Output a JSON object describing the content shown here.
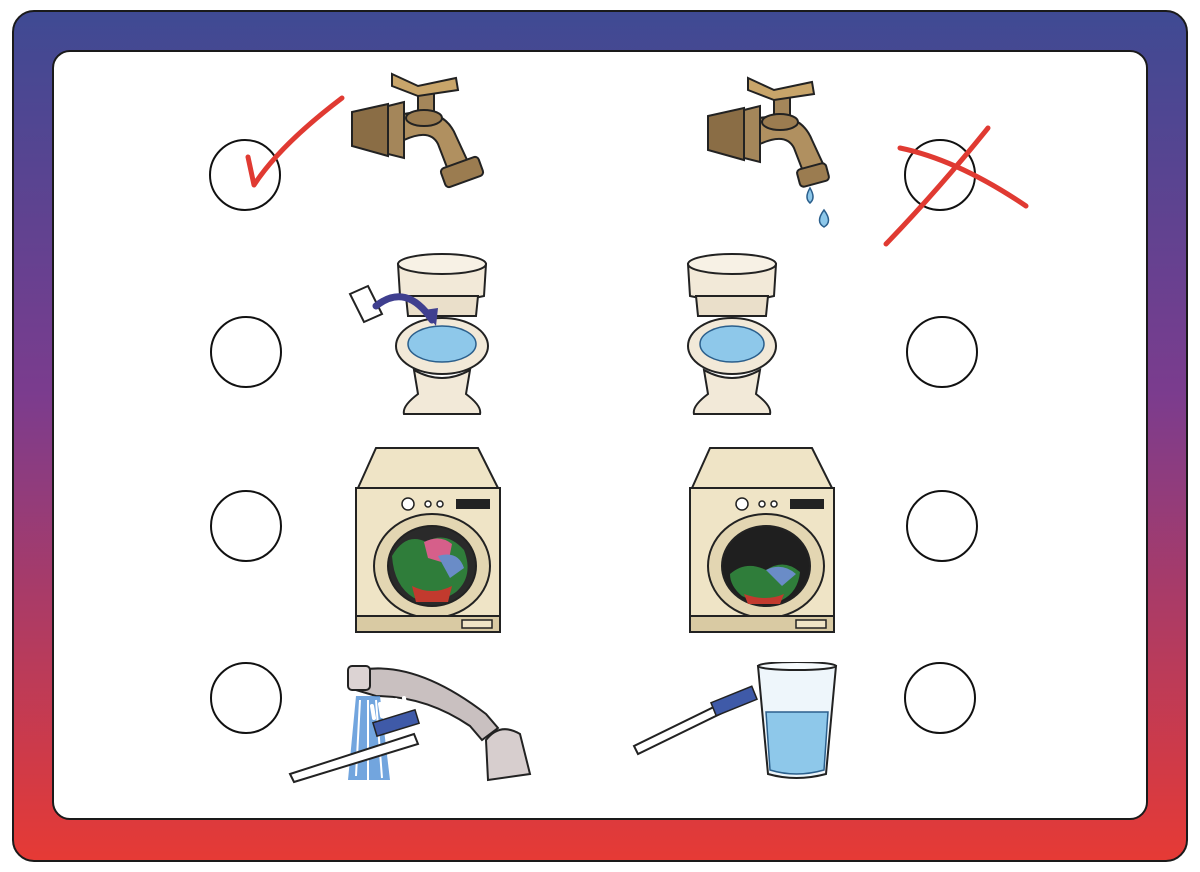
{
  "title": "",
  "colors": {
    "frame_top": "#3f4a93",
    "frame_mid": "#7b3c8e",
    "frame_bottom": "#e63a35",
    "mark": "#e03a32",
    "water": "#8ec8ea",
    "brass": "#a4865a",
    "porcelain": "#f2e9d8",
    "machine": "#efe4c6"
  },
  "rows": [
    {
      "topic": "faucet",
      "left": {
        "picture": "closed-faucet-icon",
        "answer": "check"
      },
      "right": {
        "picture": "dripping-faucet-icon",
        "answer": "cross"
      }
    },
    {
      "topic": "toilet",
      "left": {
        "picture": "toilet-with-paper-icon",
        "answer": "none"
      },
      "right": {
        "picture": "toilet-icon",
        "answer": "none"
      }
    },
    {
      "topic": "washing-machine",
      "left": {
        "picture": "full-washing-machine-icon",
        "answer": "none"
      },
      "right": {
        "picture": "half-empty-washing-machine-icon",
        "answer": "none"
      }
    },
    {
      "topic": "brushing-teeth",
      "left": {
        "picture": "toothbrush-under-running-tap-icon",
        "answer": "none"
      },
      "right": {
        "picture": "toothbrush-with-glass-of-water-icon",
        "answer": "none"
      }
    }
  ]
}
